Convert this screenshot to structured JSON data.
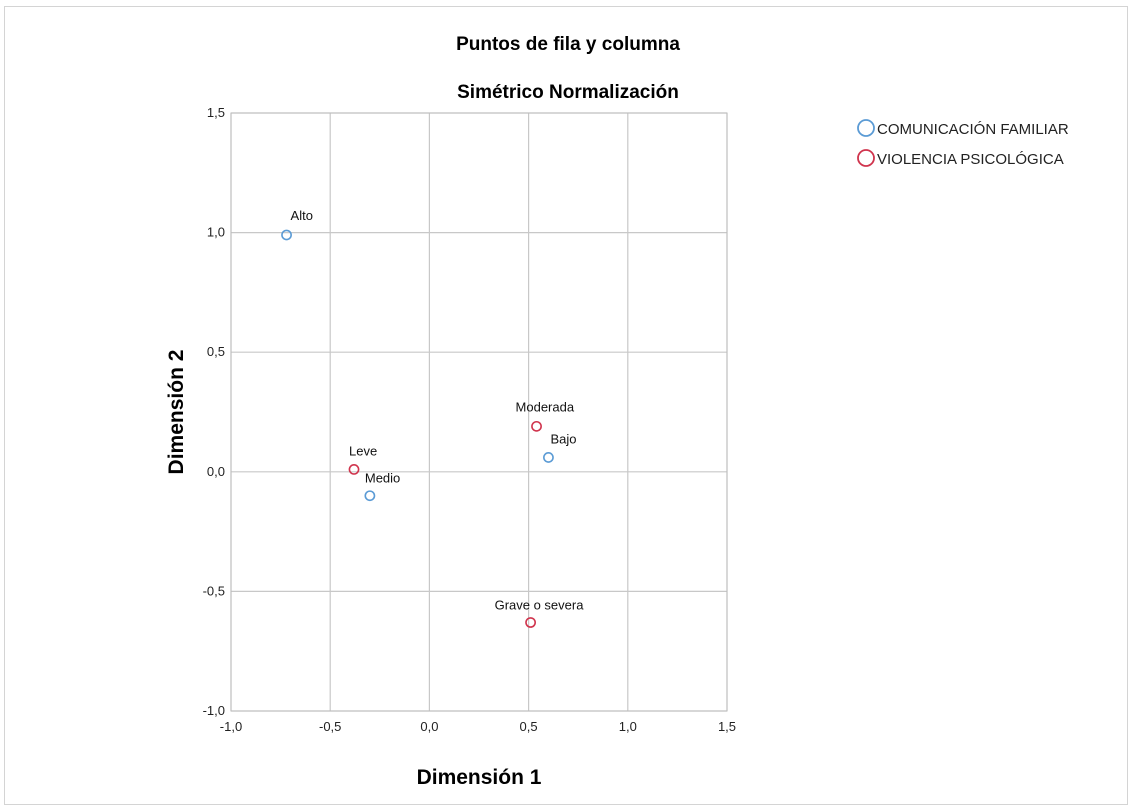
{
  "chart_data": {
    "type": "scatter",
    "title": "Puntos de fila y columna",
    "subtitle": "Simétrico Normalización",
    "xlabel": "Dimensión 1",
    "ylabel": "Dimensión 2",
    "xlim": [
      -1.0,
      1.5
    ],
    "ylim": [
      -1.0,
      1.5
    ],
    "xticks": [
      -1.0,
      -0.5,
      0.0,
      0.5,
      1.0,
      1.5
    ],
    "yticks": [
      -1.0,
      -0.5,
      0.0,
      0.5,
      1.0,
      1.5
    ],
    "xtick_labels": [
      "-1,0",
      "-0,5",
      "0,0",
      "0,5",
      "1,0",
      "1,5"
    ],
    "ytick_labels": [
      "-1,0",
      "-0,5",
      "0,0",
      "0,5",
      "1,0",
      "1,5"
    ],
    "grid": true,
    "legend_position": "top-right, outside plot",
    "series": [
      {
        "name": "COMUNICACIÓN FAMILIAR",
        "color": "#5b9bd5",
        "marker": "hollow-circle",
        "points": [
          {
            "label": "Alto",
            "x": -0.72,
            "y": 0.99
          },
          {
            "label": "Medio",
            "x": -0.3,
            "y": -0.1
          },
          {
            "label": "Bajo",
            "x": 0.6,
            "y": 0.06
          }
        ]
      },
      {
        "name": "VIOLENCIA PSICOLÓGICA",
        "color": "#d0344d",
        "marker": "hollow-circle",
        "points": [
          {
            "label": "Leve",
            "x": -0.38,
            "y": 0.01
          },
          {
            "label": "Moderada",
            "x": 0.54,
            "y": 0.19
          },
          {
            "label": "Grave o severa",
            "x": 0.51,
            "y": -0.63
          }
        ]
      }
    ]
  }
}
